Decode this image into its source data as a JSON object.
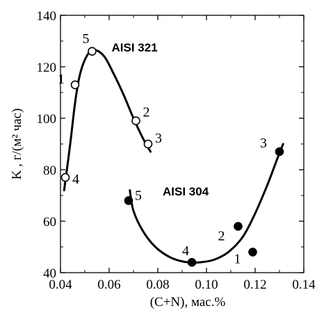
{
  "chart_data": {
    "type": "scatter",
    "xlabel": "(C+N), мас.%",
    "ylabel": "K , г/(м² час)",
    "xlim": [
      0.04,
      0.14
    ],
    "ylim": [
      40,
      140
    ],
    "xticks": [
      "0.04",
      "0.06",
      "0.08",
      "0.10",
      "0.12",
      "0.14"
    ],
    "yticks": [
      "40",
      "60",
      "80",
      "100",
      "120",
      "140"
    ],
    "grid": false,
    "series": [
      {
        "name": "AISI 321",
        "marker": "open-circle",
        "color": "#000000",
        "points": [
          {
            "label": "1",
            "x": 0.046,
            "y": 113
          },
          {
            "label": "5",
            "x": 0.053,
            "y": 126
          },
          {
            "label": "2",
            "x": 0.071,
            "y": 99
          },
          {
            "label": "3",
            "x": 0.076,
            "y": 90
          },
          {
            "label": "4",
            "x": 0.042,
            "y": 77
          }
        ],
        "fit_curve": [
          {
            "x": 0.0415,
            "y": 72
          },
          {
            "x": 0.044,
            "y": 90
          },
          {
            "x": 0.046,
            "y": 106
          },
          {
            "x": 0.048,
            "y": 117
          },
          {
            "x": 0.051,
            "y": 124.5
          },
          {
            "x": 0.054,
            "y": 126.5
          },
          {
            "x": 0.058,
            "y": 124
          },
          {
            "x": 0.062,
            "y": 117
          },
          {
            "x": 0.066,
            "y": 109
          },
          {
            "x": 0.07,
            "y": 100
          },
          {
            "x": 0.074,
            "y": 92
          },
          {
            "x": 0.077,
            "y": 87
          }
        ]
      },
      {
        "name": "AISI 304",
        "marker": "filled-circle",
        "color": "#000000",
        "points": [
          {
            "label": "5",
            "x": 0.068,
            "y": 68
          },
          {
            "label": "4",
            "x": 0.094,
            "y": 44
          },
          {
            "label": "2",
            "x": 0.113,
            "y": 58
          },
          {
            "label": "1",
            "x": 0.119,
            "y": 48
          },
          {
            "label": "3",
            "x": 0.13,
            "y": 87
          }
        ],
        "fit_curve": [
          {
            "x": 0.0685,
            "y": 72
          },
          {
            "x": 0.07,
            "y": 64
          },
          {
            "x": 0.074,
            "y": 56
          },
          {
            "x": 0.079,
            "y": 50
          },
          {
            "x": 0.085,
            "y": 46
          },
          {
            "x": 0.091,
            "y": 44.2
          },
          {
            "x": 0.097,
            "y": 44
          },
          {
            "x": 0.103,
            "y": 45
          },
          {
            "x": 0.109,
            "y": 48
          },
          {
            "x": 0.115,
            "y": 54
          },
          {
            "x": 0.12,
            "y": 63
          },
          {
            "x": 0.125,
            "y": 74
          },
          {
            "x": 0.129,
            "y": 84
          },
          {
            "x": 0.1315,
            "y": 90
          }
        ]
      }
    ]
  }
}
